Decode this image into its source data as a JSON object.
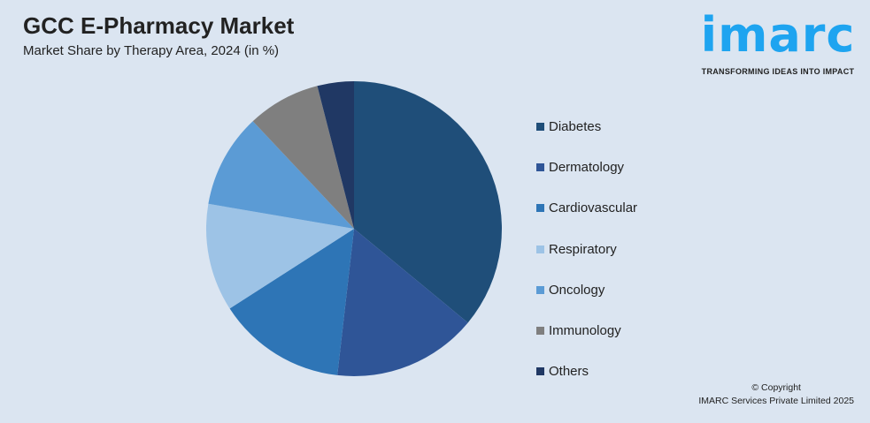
{
  "chart_data": {
    "type": "pie",
    "title": "GCC E-Pharmacy Market",
    "subtitle": "Market Share by Therapy Area, 2024 (in %)",
    "categories": [
      "Diabetes",
      "Dermatology",
      "Cardiovascular",
      "Respiratory",
      "Oncology",
      "Immunology",
      "Others"
    ],
    "values": [
      36.0,
      15.8,
      14.1,
      11.8,
      10.3,
      8.0,
      4.0
    ],
    "colors": [
      "#1f4e79",
      "#2f5597",
      "#2e75b6",
      "#9dc3e6",
      "#5b9bd5",
      "#7f7f7f",
      "#203864"
    ],
    "legend_position": "right"
  },
  "logo": {
    "word": "imarc",
    "tagline": "TRANSFORMING IDEAS INTO IMPACT"
  },
  "copyright": {
    "line1": "© Copyright",
    "line2": "IMARC Services Private Limited 2025"
  }
}
